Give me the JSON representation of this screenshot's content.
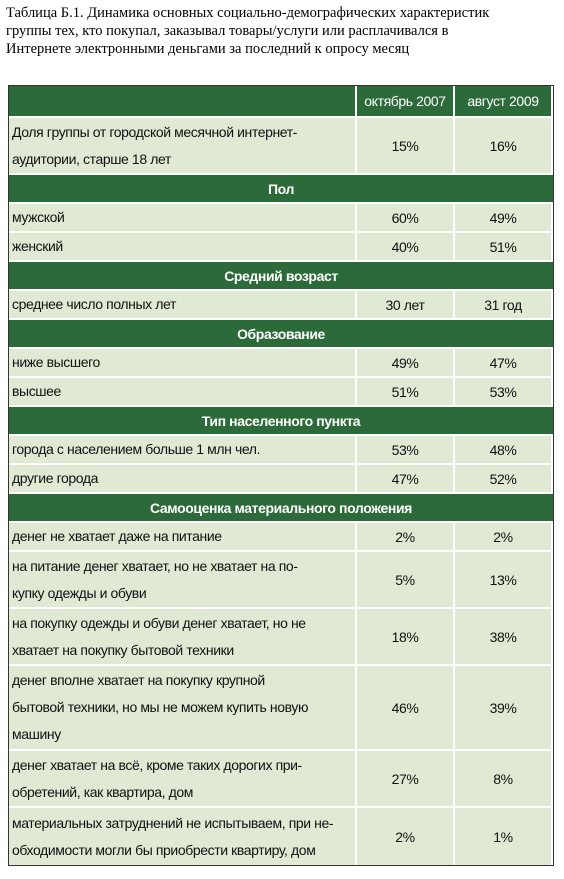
{
  "caption": [
    "Таблица Б.1. Динамика основных социально-демографических характеристик",
    "группы тех, кто покупал, заказывал товары/услуги или расплачивался в",
    "Интернете электронными деньгами за последний к опросу месяц"
  ],
  "table": {
    "header": [
      "октябрь 2007",
      "август 2009"
    ],
    "rows": [
      {
        "label": [
          "Доля группы от городской месячной интернет-",
          "аудитории, старше 18 лет"
        ],
        "values": [
          "15%",
          "16%"
        ]
      },
      {
        "section": "Пол"
      },
      {
        "label": [
          "мужской"
        ],
        "values": [
          "60%",
          "49%"
        ]
      },
      {
        "label": [
          "женский"
        ],
        "values": [
          "40%",
          "51%"
        ]
      },
      {
        "section": "Средний возраст"
      },
      {
        "label": [
          "среднее число полных лет"
        ],
        "values": [
          "30 лет",
          "31 год"
        ]
      },
      {
        "section": "Образование"
      },
      {
        "label": [
          "ниже высшего"
        ],
        "values": [
          "49%",
          "47%"
        ]
      },
      {
        "label": [
          "высшее"
        ],
        "values": [
          "51%",
          "53%"
        ]
      },
      {
        "section": "Тип населенного пункта"
      },
      {
        "label": [
          "города с населением больше 1 млн чел."
        ],
        "values": [
          "53%",
          "48%"
        ]
      },
      {
        "label": [
          "другие города"
        ],
        "values": [
          "47%",
          "52%"
        ]
      },
      {
        "section": "Самооценка материального положения"
      },
      {
        "label": [
          "денег не хватает даже на питание"
        ],
        "values": [
          "2%",
          "2%"
        ]
      },
      {
        "label": [
          "на питание денег хватает, но не хватает на по-",
          "купку одежды и обуви"
        ],
        "values": [
          "5%",
          "13%"
        ]
      },
      {
        "label": [
          "на покупку одежды и обуви денег хватает, но не",
          "хватает на покупку бытовой техники"
        ],
        "values": [
          "18%",
          "38%"
        ]
      },
      {
        "label": [
          "денег вполне хватает на покупку крупной",
          "бытовой техники, но мы не можем купить новую",
          "машину"
        ],
        "values": [
          "46%",
          "39%"
        ]
      },
      {
        "label": [
          "денег хватает на всё, кроме таких дорогих при-",
          "обретений, как квартира, дом"
        ],
        "values": [
          "27%",
          "8%"
        ]
      },
      {
        "label": [
          "материальных затруднений не испытываем, при не-",
          "обходимости могли бы приобрести квартиру, дом"
        ],
        "values": [
          "2%",
          "1%"
        ]
      }
    ]
  }
}
